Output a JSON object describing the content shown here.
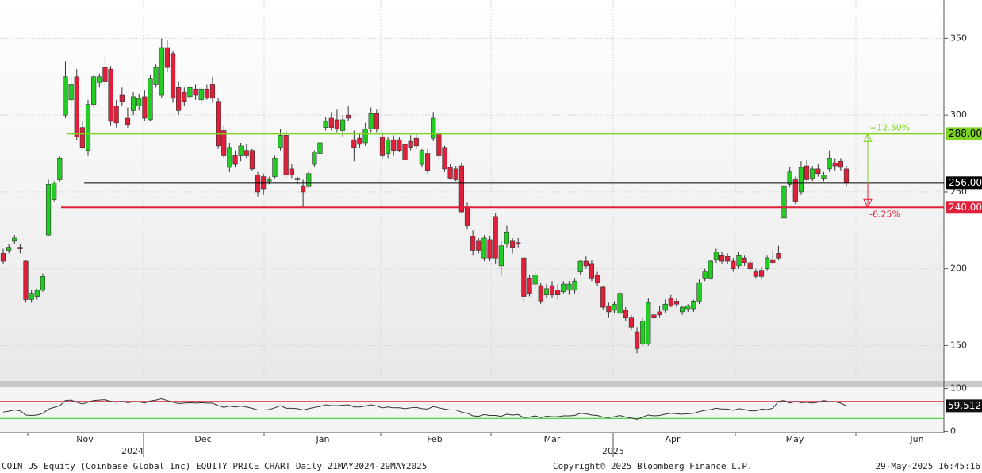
{
  "chart_data": {
    "type": "candlestick",
    "footer": "COIN US Equity (Coinbase Global Inc) EQUITY PRICE CHART  Daily 21MAY2024-29MAY2025",
    "copyright": "Copyright© 2025 Bloomberg Finance L.P.",
    "timestamp": "29-May-2025 16:45:16",
    "months": [
      "Nov",
      "Dec",
      "Jan",
      "Feb",
      "Mar",
      "Apr",
      "May",
      "Jun"
    ],
    "years": [
      "2024",
      "2025"
    ],
    "up_color": "#22cc22",
    "down_color": "#e0203a",
    "ylim": [
      127,
      375
    ],
    "yticks": [
      150,
      200,
      250,
      300,
      350
    ],
    "levels": [
      {
        "value": 288,
        "label": "288.00",
        "color": "#7ed321"
      },
      {
        "value": 256,
        "label": "256.00",
        "color": "#000000"
      },
      {
        "value": 240,
        "label": "240.00",
        "color": "#e0203a"
      }
    ],
    "annotations": [
      "+12.50%",
      "-6.25%"
    ],
    "ohlc": [
      [
        210,
        213,
        203,
        205
      ],
      [
        212,
        216,
        210,
        214
      ],
      [
        218,
        222,
        216,
        220
      ],
      [
        214,
        216,
        210,
        213
      ],
      [
        205,
        206,
        178,
        180
      ],
      [
        180,
        186,
        178,
        184
      ],
      [
        182,
        187,
        180,
        186
      ],
      [
        186,
        197,
        185,
        195
      ],
      [
        222,
        258,
        221,
        255
      ],
      [
        245,
        257,
        244,
        256
      ],
      [
        258,
        273,
        257,
        272
      ],
      [
        300,
        335,
        298,
        325
      ],
      [
        310,
        325,
        305,
        320
      ],
      [
        325,
        330,
        284,
        286
      ],
      [
        292,
        296,
        278,
        279
      ],
      [
        277,
        310,
        274,
        307
      ],
      [
        307,
        326,
        305,
        325
      ],
      [
        321,
        327,
        318,
        325
      ],
      [
        331,
        340,
        318,
        322
      ],
      [
        330,
        332,
        293,
        296
      ],
      [
        306,
        310,
        292,
        295
      ],
      [
        313,
        318,
        306,
        309
      ],
      [
        298,
        305,
        292,
        294
      ],
      [
        303,
        315,
        300,
        312
      ],
      [
        306,
        314,
        303,
        311
      ],
      [
        312,
        316,
        296,
        298
      ],
      [
        297,
        326,
        296,
        324
      ],
      [
        320,
        333,
        318,
        331
      ],
      [
        313,
        350,
        311,
        344
      ],
      [
        344,
        349,
        328,
        331
      ],
      [
        340,
        342,
        308,
        311
      ],
      [
        318,
        322,
        300,
        303
      ],
      [
        315,
        318,
        306,
        309
      ],
      [
        312,
        320,
        309,
        318
      ],
      [
        317,
        320,
        310,
        313
      ],
      [
        310,
        318,
        307,
        317
      ],
      [
        317,
        320,
        310,
        311
      ],
      [
        320,
        325,
        308,
        311
      ],
      [
        309,
        311,
        278,
        280
      ],
      [
        290,
        293,
        272,
        274
      ],
      [
        266,
        282,
        263,
        279
      ],
      [
        274,
        277,
        266,
        268
      ],
      [
        274,
        282,
        270,
        280
      ],
      [
        277,
        281,
        272,
        274
      ],
      [
        277,
        278,
        264,
        265
      ],
      [
        261,
        263,
        247,
        250
      ],
      [
        260,
        262,
        248,
        252
      ],
      [
        257,
        260,
        255,
        258
      ],
      [
        260,
        274,
        259,
        272
      ],
      [
        279,
        291,
        277,
        287
      ],
      [
        287,
        290,
        259,
        261
      ],
      [
        265,
        268,
        259,
        261
      ],
      [
        258,
        260,
        255,
        259
      ],
      [
        254,
        258,
        240,
        250
      ],
      [
        254,
        264,
        252,
        262
      ],
      [
        268,
        277,
        266,
        276
      ],
      [
        275,
        284,
        272,
        282
      ],
      [
        292,
        299,
        290,
        296
      ],
      [
        298,
        302,
        290,
        292
      ],
      [
        297,
        304,
        289,
        291
      ],
      [
        290,
        300,
        286,
        297
      ],
      [
        300,
        306,
        296,
        298
      ],
      [
        284,
        290,
        270,
        279
      ],
      [
        285,
        288,
        279,
        281
      ],
      [
        282,
        295,
        280,
        291
      ],
      [
        291,
        305,
        289,
        301
      ],
      [
        301,
        304,
        289,
        291
      ],
      [
        286,
        289,
        272,
        274
      ],
      [
        275,
        286,
        272,
        284
      ],
      [
        284,
        287,
        274,
        277
      ],
      [
        284,
        286,
        276,
        277
      ],
      [
        281,
        284,
        269,
        271
      ],
      [
        283,
        287,
        277,
        279
      ],
      [
        285,
        288,
        278,
        280
      ],
      [
        268,
        278,
        266,
        277
      ],
      [
        275,
        278,
        262,
        264
      ],
      [
        285,
        302,
        283,
        298
      ],
      [
        288,
        291,
        271,
        274
      ],
      [
        279,
        280,
        263,
        265
      ],
      [
        266,
        268,
        258,
        259
      ],
      [
        265,
        267,
        257,
        258
      ],
      [
        267,
        269,
        236,
        237
      ],
      [
        240,
        243,
        226,
        228
      ],
      [
        221,
        225,
        209,
        212
      ],
      [
        218,
        220,
        210,
        212
      ],
      [
        207,
        222,
        205,
        220
      ],
      [
        219,
        221,
        205,
        207
      ],
      [
        234,
        236,
        203,
        207
      ],
      [
        202,
        218,
        196,
        215
      ],
      [
        216,
        228,
        214,
        224
      ],
      [
        218,
        220,
        210,
        214
      ],
      [
        217,
        220,
        214,
        216
      ],
      [
        207,
        208,
        178,
        182
      ],
      [
        194,
        196,
        182,
        184
      ],
      [
        190,
        198,
        187,
        196
      ],
      [
        189,
        191,
        177,
        179
      ],
      [
        183,
        190,
        181,
        187
      ],
      [
        189,
        192,
        181,
        183
      ],
      [
        186,
        190,
        180,
        183
      ],
      [
        185,
        192,
        184,
        190
      ],
      [
        186,
        192,
        183,
        190
      ],
      [
        186,
        194,
        184,
        192
      ],
      [
        198,
        206,
        196,
        205
      ],
      [
        205,
        208,
        200,
        202
      ],
      [
        203,
        206,
        192,
        194
      ],
      [
        196,
        198,
        189,
        191
      ],
      [
        188,
        189,
        173,
        175
      ],
      [
        176,
        178,
        168,
        172
      ],
      [
        173,
        179,
        171,
        177
      ],
      [
        171,
        186,
        170,
        184
      ],
      [
        173,
        175,
        166,
        168
      ],
      [
        168,
        170,
        160,
        162
      ],
      [
        159,
        162,
        145,
        148
      ],
      [
        151,
        168,
        150,
        166
      ],
      [
        151,
        181,
        150,
        178
      ],
      [
        170,
        174,
        166,
        168
      ],
      [
        172,
        176,
        168,
        170
      ],
      [
        173,
        180,
        171,
        177
      ],
      [
        181,
        183,
        175,
        176
      ],
      [
        179,
        181,
        175,
        177
      ],
      [
        172,
        176,
        170,
        175
      ],
      [
        174,
        177,
        172,
        176
      ],
      [
        174,
        180,
        172,
        179
      ],
      [
        179,
        193,
        177,
        191
      ],
      [
        194,
        200,
        192,
        198
      ],
      [
        194,
        206,
        193,
        205
      ],
      [
        206,
        213,
        204,
        211
      ],
      [
        209,
        211,
        203,
        205
      ],
      [
        208,
        210,
        203,
        205
      ],
      [
        205,
        207,
        198,
        200
      ],
      [
        202,
        211,
        200,
        209
      ],
      [
        207,
        209,
        202,
        204
      ],
      [
        204,
        206,
        198,
        200
      ],
      [
        198,
        200,
        194,
        195
      ],
      [
        199,
        201,
        193,
        195
      ],
      [
        200,
        209,
        199,
        207
      ],
      [
        206,
        212,
        203,
        204
      ],
      [
        210,
        215,
        206,
        207
      ],
      [
        233,
        256,
        232,
        254
      ],
      [
        255,
        266,
        253,
        263
      ],
      [
        258,
        260,
        242,
        244
      ],
      [
        250,
        270,
        248,
        266
      ],
      [
        267,
        271,
        257,
        258
      ],
      [
        259,
        267,
        257,
        265
      ],
      [
        265,
        268,
        260,
        262
      ],
      [
        259,
        263,
        257,
        261
      ],
      [
        265,
        277,
        263,
        272
      ],
      [
        269,
        272,
        264,
        267
      ],
      [
        270,
        272,
        264,
        266
      ],
      [
        265,
        267,
        254,
        256
      ]
    ],
    "rsi": {
      "color": "#333333",
      "ylim": [
        -3,
        103
      ],
      "yticks": [
        0,
        100
      ],
      "bands": [
        {
          "value": 70,
          "color": "#e0203a"
        },
        {
          "value": 30,
          "color": "#22cc22"
        }
      ],
      "values": [
        45,
        47,
        50,
        48,
        38,
        37,
        38,
        42,
        52,
        56,
        60,
        72,
        73,
        68,
        64,
        68,
        72,
        73,
        74,
        70,
        68,
        70,
        67,
        69,
        69,
        66,
        71,
        73,
        76,
        72,
        68,
        65,
        66,
        67,
        66,
        67,
        66,
        66,
        60,
        56,
        59,
        57,
        59,
        57,
        54,
        50,
        50,
        51,
        55,
        60,
        54,
        54,
        53,
        50,
        53,
        56,
        58,
        62,
        60,
        60,
        61,
        62,
        57,
        57,
        59,
        62,
        59,
        55,
        57,
        55,
        55,
        53,
        55,
        56,
        53,
        52,
        58,
        55,
        52,
        50,
        50,
        45,
        42,
        36,
        35,
        39,
        37,
        37,
        35,
        40,
        38,
        39,
        32,
        33,
        36,
        32,
        35,
        34,
        34,
        36,
        36,
        37,
        42,
        41,
        38,
        37,
        33,
        32,
        34,
        37,
        33,
        31,
        28,
        33,
        38,
        36,
        37,
        40,
        42,
        41,
        40,
        41,
        42,
        46,
        49,
        51,
        54,
        52,
        52,
        49,
        53,
        51,
        48,
        48,
        52,
        51,
        54,
        70,
        72,
        66,
        70,
        67,
        68,
        66,
        68,
        72,
        69,
        69,
        66,
        59.512
      ]
    }
  }
}
